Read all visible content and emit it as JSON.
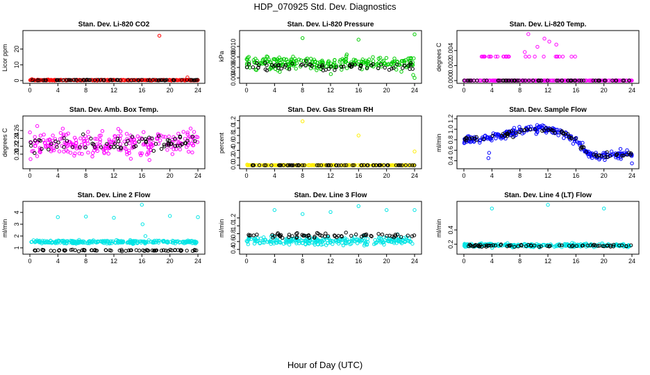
{
  "figure": {
    "title": "HDP_070925  Std. Dev. Diagnostics",
    "xlabel": "Hour of Day (UTC)"
  },
  "chart_data": [
    {
      "type": "scatter",
      "id": "co2",
      "title": "Stan. Dev. Li-820 CO2",
      "xlabel": "",
      "ylabel": "Licor ppm",
      "xlim": [
        0,
        24
      ],
      "ylim": [
        0,
        30
      ],
      "xticks": [
        0,
        4,
        8,
        12,
        16,
        20,
        24
      ],
      "yticks": [
        0,
        10,
        20
      ],
      "color": "#ff0000",
      "base": {
        "mean": 0.3,
        "spread": 0.2
      },
      "black_base": {
        "mean": 0.3,
        "spread": 0.15
      },
      "outliers": [
        {
          "x": 18.5,
          "y": 28.5
        },
        {
          "x": 22.5,
          "y": 2.0
        },
        {
          "x": 0.3,
          "y": 0.9
        }
      ]
    },
    {
      "type": "scatter",
      "id": "pressure",
      "title": "Stan. Dev. Li-820 Pressure",
      "xlabel": "",
      "ylabel": "kPa",
      "xlim": [
        0,
        24
      ],
      "ylim": [
        0.0035,
        0.0125
      ],
      "xticks": [
        0,
        4,
        8,
        12,
        16,
        20,
        24
      ],
      "yticks": [
        0.004,
        0.006,
        0.008,
        0.01
      ],
      "ytick_labels": [
        "0.004",
        "0.006",
        "0.008",
        "0.010"
      ],
      "color": "#00cc00",
      "base": {
        "mean": 0.0069,
        "spread": 0.0011
      },
      "black_base": {
        "mean": 0.0062,
        "spread": 0.0007
      },
      "outliers": [
        {
          "x": 8.0,
          "y": 0.0116
        },
        {
          "x": 16.0,
          "y": 0.0113
        },
        {
          "x": 24.0,
          "y": 0.0123
        },
        {
          "x": 24.0,
          "y": 0.004
        }
      ]
    },
    {
      "type": "scatter",
      "id": "temp",
      "title": "Stan. Dev. Li-820 Temp.",
      "xlabel": "",
      "ylabel": "degrees C",
      "xlim": [
        0,
        24
      ],
      "ylim": [
        0,
        0.0063
      ],
      "xticks": [
        0,
        4,
        8,
        12,
        16,
        20,
        24
      ],
      "yticks": [
        0,
        0.002,
        0.004
      ],
      "ytick_labels": [
        "0.000",
        "0.002",
        "0.004"
      ],
      "color": "#ff00ff",
      "base": {
        "mean": 0,
        "spread": 0
      },
      "black_base": {
        "mean": 0,
        "spread": 0
      },
      "level_points": {
        "y": 0.0032,
        "x_ranges": [
          [
            2,
            5
          ],
          [
            5.5,
            6.5
          ],
          [
            8,
            16
          ]
        ],
        "count": 34
      },
      "outliers": [
        {
          "x": 9.2,
          "y": 0.0062
        },
        {
          "x": 10.5,
          "y": 0.0045
        },
        {
          "x": 8.7,
          "y": 0.0038
        },
        {
          "x": 13.2,
          "y": 0.0048
        },
        {
          "x": 12.2,
          "y": 0.0052
        },
        {
          "x": 11.5,
          "y": 0.0056
        }
      ]
    },
    {
      "type": "scatter",
      "id": "boxtemp",
      "title": "Stan. Dev. Amb. Box Temp.",
      "xlabel": "",
      "ylabel": "degrees C",
      "xlim": [
        0,
        24
      ],
      "ylim": [
        0.17,
        0.29
      ],
      "xticks": [
        0,
        4,
        8,
        12,
        16,
        20,
        24
      ],
      "yticks": [
        0.2,
        0.22,
        0.24,
        0.26
      ],
      "ytick_labels": [
        "0.20",
        "0.22",
        "0.24",
        "0.26"
      ],
      "color": "#ff00ff",
      "base": {
        "mean": 0.228,
        "spread": 0.028
      },
      "black_base": {
        "mean": 0.228,
        "spread": 0.018
      },
      "outliers": []
    },
    {
      "type": "scatter",
      "id": "rh",
      "title": "Stan. Dev. Gas Stream RH",
      "xlabel": "",
      "ylabel": "percent",
      "xlim": [
        0,
        24
      ],
      "ylim": [
        -0.02,
        1.25
      ],
      "xticks": [
        0,
        4,
        8,
        12,
        16,
        20,
        24
      ],
      "yticks": [
        0,
        0.2,
        0.4,
        0.6,
        0.8,
        1.0,
        1.2
      ],
      "ytick_labels": [
        "0.0",
        "0.2",
        "0.4",
        "0.6",
        "0.8",
        "1.0",
        "1.2"
      ],
      "color": "#ffee00",
      "base": {
        "mean": 0.0,
        "spread": 0.003
      },
      "black_base": {
        "mean": 0.0,
        "spread": 0.002
      },
      "outliers": [
        {
          "x": 8.0,
          "y": 1.18
        },
        {
          "x": 16.0,
          "y": 0.8
        },
        {
          "x": 24.0,
          "y": 0.37
        },
        {
          "x": 0.1,
          "y": 0.02
        }
      ]
    },
    {
      "type": "scatter",
      "id": "sampleflow",
      "title": "Stan. Dev. Sample Flow",
      "xlabel": "",
      "ylabel": "ml/min",
      "xlim": [
        0,
        24
      ],
      "ylim": [
        0.3,
        1.2
      ],
      "xticks": [
        0,
        4,
        8,
        12,
        16,
        20,
        24
      ],
      "yticks": [
        0.4,
        0.6,
        0.8,
        1.0,
        1.2
      ],
      "ytick_labels": [
        "0.4",
        "0.6",
        "0.8",
        "1.0",
        "1.2"
      ],
      "color": "#0000ff",
      "trend": [
        [
          0,
          0.8
        ],
        [
          2,
          0.82
        ],
        [
          4,
          0.86
        ],
        [
          6,
          0.9
        ],
        [
          8,
          0.97
        ],
        [
          10,
          1.02
        ],
        [
          12,
          1.0
        ],
        [
          14,
          0.92
        ],
        [
          16,
          0.8
        ],
        [
          17,
          0.65
        ],
        [
          18,
          0.5
        ],
        [
          20,
          0.5
        ],
        [
          24,
          0.52
        ]
      ],
      "base": {
        "mean": 0,
        "spread": 0.06
      },
      "black_base": {
        "mean": 0,
        "spread": 0.04
      },
      "outliers": [
        {
          "x": 3.5,
          "y": 0.45
        },
        {
          "x": 3.6,
          "y": 0.55
        },
        {
          "x": 24.0,
          "y": 0.35
        }
      ]
    },
    {
      "type": "scatter",
      "id": "line2",
      "title": "Stan. Dev. Line 2 Flow",
      "xlabel": "",
      "ylabel": "ml/min",
      "xlim": [
        0,
        24
      ],
      "ylim": [
        0.7,
        4.7
      ],
      "xticks": [
        0,
        4,
        8,
        12,
        16,
        20,
        24
      ],
      "yticks": [
        1,
        2,
        3,
        4
      ],
      "color": "#00e5e5",
      "base": {
        "mean": 1.5,
        "spread": 0.12
      },
      "black_base": {
        "mean": 0.78,
        "spread": 0.05
      },
      "outliers": [
        {
          "x": 4.0,
          "y": 3.6
        },
        {
          "x": 8.0,
          "y": 3.65
        },
        {
          "x": 12.0,
          "y": 3.55
        },
        {
          "x": 16.0,
          "y": 4.65
        },
        {
          "x": 16.1,
          "y": 3.0
        },
        {
          "x": 20.0,
          "y": 3.7
        },
        {
          "x": 24.0,
          "y": 3.6
        },
        {
          "x": 16.5,
          "y": 2.0
        }
      ]
    },
    {
      "type": "scatter",
      "id": "line3",
      "title": "Stan. Dev. Line 3 Flow",
      "xlabel": "",
      "ylabel": "ml/min",
      "xlim": [
        0,
        24
      ],
      "ylim": [
        0.35,
        1.55
      ],
      "xticks": [
        0,
        4,
        8,
        12,
        16,
        20,
        24
      ],
      "yticks": [
        0.4,
        0.6,
        0.8,
        1.0,
        1.2
      ],
      "ytick_labels": [
        "0.4",
        "0.6",
        "0.8",
        "1.0",
        "1.2"
      ],
      "color": "#00e5e5",
      "base": {
        "mean": 0.62,
        "spread": 0.09
      },
      "black_base": {
        "mean": 0.75,
        "spread": 0.05
      },
      "outliers": [
        {
          "x": 4.0,
          "y": 1.4
        },
        {
          "x": 8.0,
          "y": 1.3
        },
        {
          "x": 12.0,
          "y": 1.35
        },
        {
          "x": 16.0,
          "y": 1.5
        },
        {
          "x": 20.0,
          "y": 1.4
        },
        {
          "x": 24.0,
          "y": 1.4
        }
      ]
    },
    {
      "type": "scatter",
      "id": "line4",
      "title": "Stan. Dev. Line 4 (LT) Flow",
      "xlabel": "",
      "ylabel": "ml/min",
      "xlim": [
        0,
        24
      ],
      "ylim": [
        0.1,
        0.76
      ],
      "xticks": [
        0,
        4,
        8,
        12,
        16,
        20,
        24
      ],
      "yticks": [
        0.2,
        0.4
      ],
      "ytick_labels": [
        "0.2",
        "0.4"
      ],
      "color": "#00e5e5",
      "base": {
        "mean": 0.185,
        "spread": 0.02
      },
      "black_base": {
        "mean": 0.18,
        "spread": 0.012
      },
      "outliers": [
        {
          "x": 4.0,
          "y": 0.7
        },
        {
          "x": 12.0,
          "y": 0.75
        },
        {
          "x": 20.0,
          "y": 0.7
        }
      ]
    }
  ]
}
